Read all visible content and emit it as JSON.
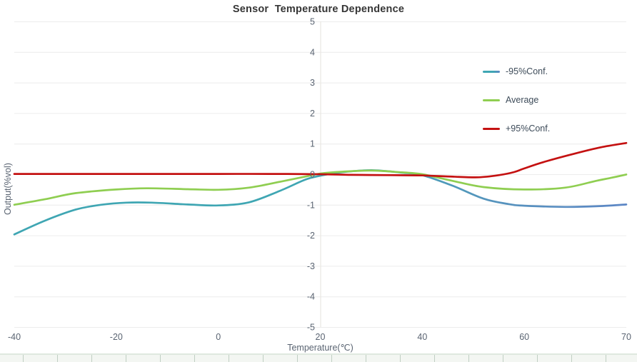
{
  "title": "Sensor  Temperature Dependence",
  "colors": {
    "background": "#ffffff",
    "grid": "#ececec",
    "axis_line": "#e6e3de",
    "tick_text": "#5a6472",
    "title_text": "#363636",
    "legend_text": "#3d4b59",
    "series_teal_start": "#3fa6b3",
    "series_teal_end": "#5c86c5",
    "series_green": "#8fce51",
    "series_red": "#c41111",
    "datazoom_band": "#f3f6f2",
    "datazoom_tick": "#c0cfc3"
  },
  "chart_data": {
    "type": "line",
    "title": "Sensor  Temperature Dependence",
    "xlabel": "Temperature(℃)",
    "ylabel": "Output(%vol)",
    "categories": [
      "-40",
      "-20",
      "0",
      "20",
      "40",
      "60",
      "70"
    ],
    "y_ticks": [
      5,
      4,
      3,
      2,
      1,
      0,
      -1,
      -2,
      -3,
      -4,
      -5
    ],
    "ylim": [
      -5,
      5
    ],
    "grid": true,
    "legend_position": "right-top",
    "x_axis_type": "category",
    "y_axis_cross_category": "20",
    "series": [
      {
        "name": "-95%Conf.",
        "color": "gradient:teal-blue",
        "values_at_categories": [
          -2.0,
          -0.95,
          -1.0,
          0.0,
          0.0,
          -1.05,
          -1.0
        ],
        "samples": [
          [
            0,
            -1.97
          ],
          [
            0.3,
            -1.52
          ],
          [
            0.6,
            -1.16
          ],
          [
            0.85,
            -1.0
          ],
          [
            1.1,
            -0.93
          ],
          [
            1.35,
            -0.93
          ],
          [
            1.7,
            -0.99
          ],
          [
            2,
            -1.02
          ],
          [
            2.3,
            -0.92
          ],
          [
            2.6,
            -0.55
          ],
          [
            2.85,
            -0.18
          ],
          [
            3,
            -0.05
          ],
          [
            3.2,
            0.06
          ],
          [
            3.5,
            0.13
          ],
          [
            3.8,
            0.05
          ],
          [
            4,
            -0.03
          ],
          [
            4.3,
            -0.38
          ],
          [
            4.6,
            -0.8
          ],
          [
            4.85,
            -0.98
          ],
          [
            5,
            -1.03
          ],
          [
            5.4,
            -1.07
          ],
          [
            5.7,
            -1.05
          ],
          [
            6,
            -0.99
          ]
        ]
      },
      {
        "name": "Average",
        "color": "#8fce51",
        "values_at_categories": [
          -1.0,
          -0.5,
          -0.5,
          0.0,
          0.0,
          -0.5,
          0.0
        ],
        "samples": [
          [
            0,
            -1.0
          ],
          [
            0.3,
            -0.82
          ],
          [
            0.6,
            -0.62
          ],
          [
            1,
            -0.5
          ],
          [
            1.3,
            -0.46
          ],
          [
            1.7,
            -0.49
          ],
          [
            2,
            -0.51
          ],
          [
            2.3,
            -0.44
          ],
          [
            2.6,
            -0.25
          ],
          [
            2.85,
            -0.08
          ],
          [
            3,
            0.02
          ],
          [
            3.2,
            0.08
          ],
          [
            3.5,
            0.12
          ],
          [
            3.8,
            0.06
          ],
          [
            4,
            0.0
          ],
          [
            4.3,
            -0.22
          ],
          [
            4.6,
            -0.42
          ],
          [
            5,
            -0.5
          ],
          [
            5.4,
            -0.44
          ],
          [
            5.7,
            -0.22
          ],
          [
            5.85,
            -0.12
          ],
          [
            6,
            -0.01
          ]
        ]
      },
      {
        "name": "+95%Conf.",
        "color": "#c41111",
        "values_at_categories": [
          0.0,
          0.0,
          0.0,
          0.0,
          0.0,
          0.17,
          1.0
        ],
        "samples": [
          [
            0,
            0.01
          ],
          [
            0.5,
            0.01
          ],
          [
            1,
            0.01
          ],
          [
            1.5,
            0.01
          ],
          [
            2,
            0.01
          ],
          [
            2.5,
            0.01
          ],
          [
            3,
            0.0
          ],
          [
            3.3,
            -0.02
          ],
          [
            3.7,
            -0.03
          ],
          [
            4,
            -0.04
          ],
          [
            4.3,
            -0.08
          ],
          [
            4.55,
            -0.1
          ],
          [
            4.75,
            -0.03
          ],
          [
            4.9,
            0.07
          ],
          [
            5,
            0.19
          ],
          [
            5.2,
            0.41
          ],
          [
            5.5,
            0.68
          ],
          [
            5.75,
            0.88
          ],
          [
            6,
            1.02
          ]
        ]
      }
    ]
  }
}
